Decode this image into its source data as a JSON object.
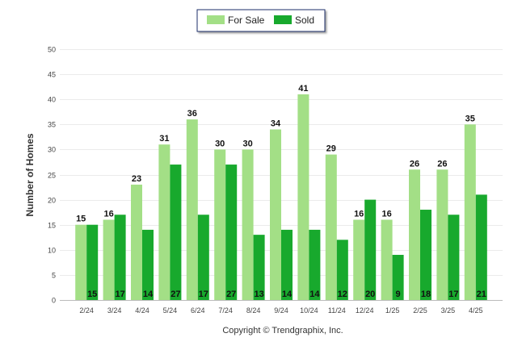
{
  "chart_data": {
    "type": "bar",
    "categories": [
      "2/24",
      "3/24",
      "4/24",
      "5/24",
      "6/24",
      "7/24",
      "8/24",
      "9/24",
      "10/24",
      "11/24",
      "12/24",
      "1/25",
      "2/25",
      "3/25",
      "4/25"
    ],
    "series": [
      {
        "name": "For Sale",
        "color": "#a3df86",
        "values": [
          15,
          16,
          23,
          31,
          36,
          30,
          30,
          34,
          41,
          29,
          16,
          16,
          26,
          26,
          35
        ]
      },
      {
        "name": "Sold",
        "color": "#18a92d",
        "values": [
          15,
          17,
          14,
          27,
          17,
          27,
          13,
          14,
          14,
          12,
          20,
          9,
          18,
          17,
          21
        ]
      }
    ],
    "ylabel": "Number of Homes",
    "xlabel": "",
    "ylim": [
      0,
      50
    ],
    "yticks": [
      0,
      5,
      10,
      15,
      20,
      25,
      30,
      35,
      40,
      45,
      50
    ],
    "grid": true,
    "legend_position": "top-center",
    "footer": "Copyright © Trendgraphix, Inc."
  }
}
